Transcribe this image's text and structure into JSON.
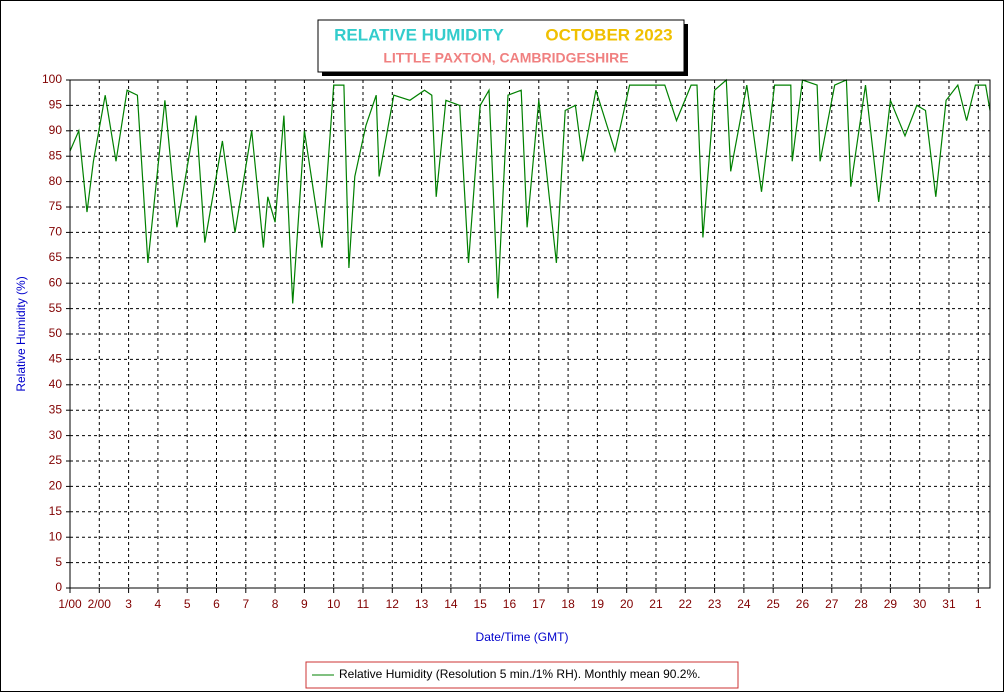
{
  "chart_data": {
    "type": "line",
    "title": "RELATIVE HUMIDITY",
    "title_period": "OCTOBER 2023",
    "subtitle": "LITTLE PAXTON, CAMBRIDGESHIRE",
    "x_label": "Date/Time (GMT)",
    "y_label": "Relative Humidity (%)",
    "xlim": [
      0,
      31.4
    ],
    "ylim": [
      0,
      100
    ],
    "yticks": [
      0,
      5,
      10,
      15,
      20,
      25,
      30,
      35,
      40,
      45,
      50,
      55,
      60,
      65,
      70,
      75,
      80,
      85,
      90,
      95,
      100
    ],
    "xticks": [
      {
        "value": 0,
        "label": "1/00"
      },
      {
        "value": 1,
        "label": "2/00"
      },
      {
        "value": 2,
        "label": "3"
      },
      {
        "value": 3,
        "label": "4"
      },
      {
        "value": 4,
        "label": "5"
      },
      {
        "value": 5,
        "label": "6"
      },
      {
        "value": 6,
        "label": "7"
      },
      {
        "value": 7,
        "label": "8"
      },
      {
        "value": 8,
        "label": "9"
      },
      {
        "value": 9,
        "label": "10"
      },
      {
        "value": 10,
        "label": "11"
      },
      {
        "value": 11,
        "label": "12"
      },
      {
        "value": 12,
        "label": "13"
      },
      {
        "value": 13,
        "label": "14"
      },
      {
        "value": 14,
        "label": "15"
      },
      {
        "value": 15,
        "label": "16"
      },
      {
        "value": 16,
        "label": "17"
      },
      {
        "value": 17,
        "label": "18"
      },
      {
        "value": 18,
        "label": "19"
      },
      {
        "value": 19,
        "label": "20"
      },
      {
        "value": 20,
        "label": "21"
      },
      {
        "value": 21,
        "label": "22"
      },
      {
        "value": 22,
        "label": "23"
      },
      {
        "value": 23,
        "label": "24"
      },
      {
        "value": 24,
        "label": "25"
      },
      {
        "value": 25,
        "label": "26"
      },
      {
        "value": 26,
        "label": "27"
      },
      {
        "value": 27,
        "label": "28"
      },
      {
        "value": 28,
        "label": "29"
      },
      {
        "value": 29,
        "label": "30"
      },
      {
        "value": 30,
        "label": "31"
      },
      {
        "value": 31,
        "label": "1"
      }
    ],
    "grid": true,
    "series": [
      {
        "name": "Relative Humidity (Resolution 5 min./1% RH). Monthly mean 90.2%.",
        "color": "#008000",
        "x": [
          0,
          0.3,
          0.58,
          0.8,
          1.2,
          1.57,
          1.95,
          2.3,
          2.66,
          3.24,
          3.65,
          4.3,
          4.6,
          5.2,
          5.63,
          6.2,
          6.6,
          6.75,
          7.0,
          7.3,
          7.6,
          8.0,
          8.6,
          9.0,
          9.35,
          9.52,
          9.72,
          10.1,
          10.45,
          10.55,
          11.05,
          11.6,
          12.1,
          12.35,
          12.5,
          12.83,
          13.3,
          13.6,
          14.0,
          14.3,
          14.6,
          14.95,
          15.4,
          15.6,
          16.0,
          16.6,
          16.9,
          17.25,
          17.5,
          17.95,
          18.6,
          19.1,
          20.3,
          20.7,
          21.2,
          21.4,
          21.6,
          22.0,
          22.4,
          22.55,
          23.1,
          23.6,
          24.05,
          24.6,
          24.65,
          25.0,
          25.5,
          25.6,
          26.1,
          26.5,
          26.65,
          27.15,
          27.6,
          28.0,
          28.5,
          28.9,
          29.2,
          29.55,
          29.9,
          30.3,
          30.6,
          30.9,
          31.25,
          31.4
        ],
        "values": [
          86,
          90,
          74,
          84,
          97,
          84,
          98,
          97,
          64,
          96,
          71,
          93,
          68,
          88,
          70,
          90,
          67,
          77,
          72,
          93,
          56,
          90,
          67,
          99,
          99,
          63,
          81,
          91,
          97,
          81,
          97,
          96,
          98,
          97,
          77,
          96,
          95,
          64,
          95,
          98,
          57,
          97,
          98,
          71,
          96,
          64,
          94,
          95,
          84,
          98,
          86,
          99,
          99,
          92,
          99,
          99,
          69,
          98,
          100,
          82,
          99,
          78,
          99,
          99,
          84,
          100,
          99,
          84,
          99,
          100,
          79,
          99,
          76,
          96,
          89,
          95,
          94,
          77,
          96,
          99,
          92,
          99,
          99,
          94
        ]
      }
    ]
  }
}
